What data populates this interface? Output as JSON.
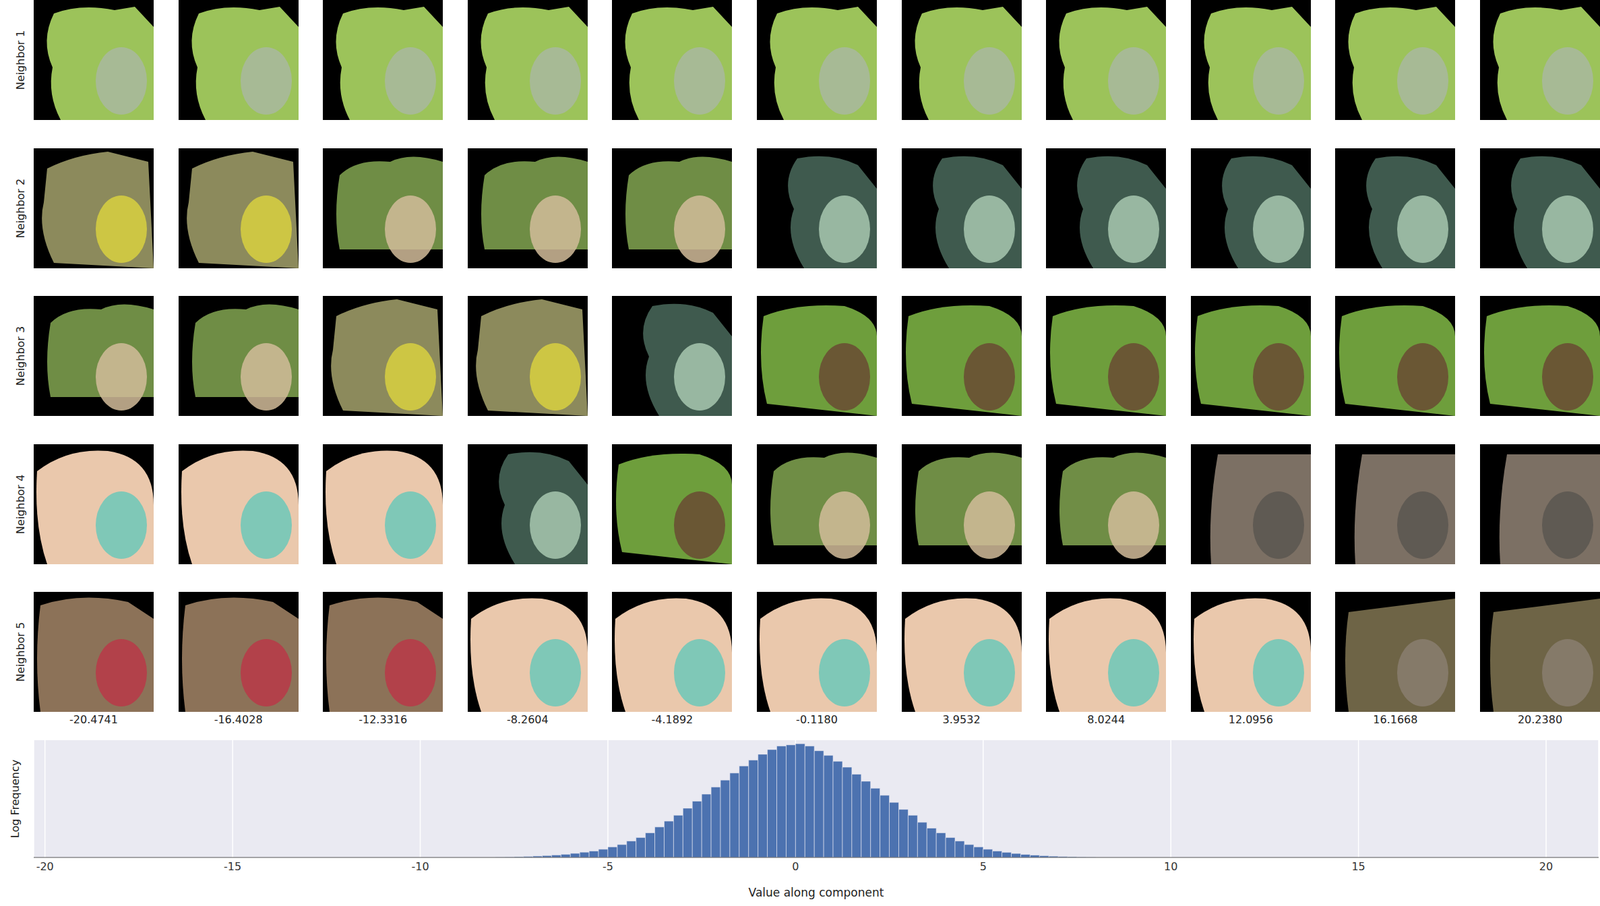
{
  "image_grid": {
    "row_labels": [
      "Neighbor 1",
      "Neighbor 2",
      "Neighbor 3",
      "Neighbor 4",
      "Neighbor 5"
    ],
    "column_values": [
      -20.4741,
      -16.4028,
      -12.3316,
      -8.2604,
      -4.1892,
      {
        "value": -0.118,
        "label": "-0.1180"
      },
      3.9532,
      8.0244,
      12.0956,
      16.1668,
      {
        "value": 20.238,
        "label": "20.2380"
      }
    ]
  },
  "chart_data": {
    "type": "histogram",
    "xlabel": "Value along component",
    "ylabel": "Log Frequency",
    "bins": [
      -8,
      -7.75,
      -7.5,
      -7.25,
      -7,
      -6.75,
      -6.5,
      -6.25,
      -6,
      -5.75,
      -5.5,
      -5.25,
      -5,
      -4.75,
      -4.5,
      -4.25,
      -4,
      -3.75,
      -3.5,
      -3.25,
      -3,
      -2.75,
      -2.5,
      -2.25,
      -2,
      -1.75,
      -1.5,
      -1.25,
      -1,
      -0.75,
      -0.5,
      -0.25,
      0,
      0.25,
      0.5,
      0.75,
      1,
      1.25,
      1.5,
      1.75,
      2,
      2.25,
      2.5,
      2.75,
      3,
      3.25,
      3.5,
      3.75,
      4,
      4.25,
      4.5,
      4.75,
      5,
      5.25,
      5.5,
      5.75,
      6,
      6.25,
      6.5,
      6.75,
      7,
      7.25,
      7.5,
      7.75,
      8
    ],
    "values": [
      0.002,
      0.004,
      0.006,
      0.009,
      0.012,
      0.016,
      0.021,
      0.027,
      0.035,
      0.045,
      0.055,
      0.07,
      0.09,
      0.11,
      0.14,
      0.17,
      0.21,
      0.26,
      0.31,
      0.36,
      0.42,
      0.48,
      0.54,
      0.6,
      0.66,
      0.72,
      0.78,
      0.83,
      0.88,
      0.92,
      0.95,
      0.96,
      0.97,
      0.95,
      0.91,
      0.87,
      0.82,
      0.77,
      0.71,
      0.65,
      0.59,
      0.53,
      0.47,
      0.41,
      0.36,
      0.3,
      0.25,
      0.21,
      0.17,
      0.14,
      0.11,
      0.09,
      0.07,
      0.055,
      0.044,
      0.034,
      0.026,
      0.02,
      0.015,
      0.011,
      0.008,
      0.006,
      0.004,
      0.002
    ],
    "color": "#4c72b0",
    "xlim": [
      -20.3,
      21.4
    ],
    "xticks": [
      -20,
      -15,
      -10,
      -5,
      0,
      5,
      10,
      15,
      20
    ],
    "ylim": [
      0,
      1
    ],
    "grid": true,
    "tick_labels": "x"
  }
}
